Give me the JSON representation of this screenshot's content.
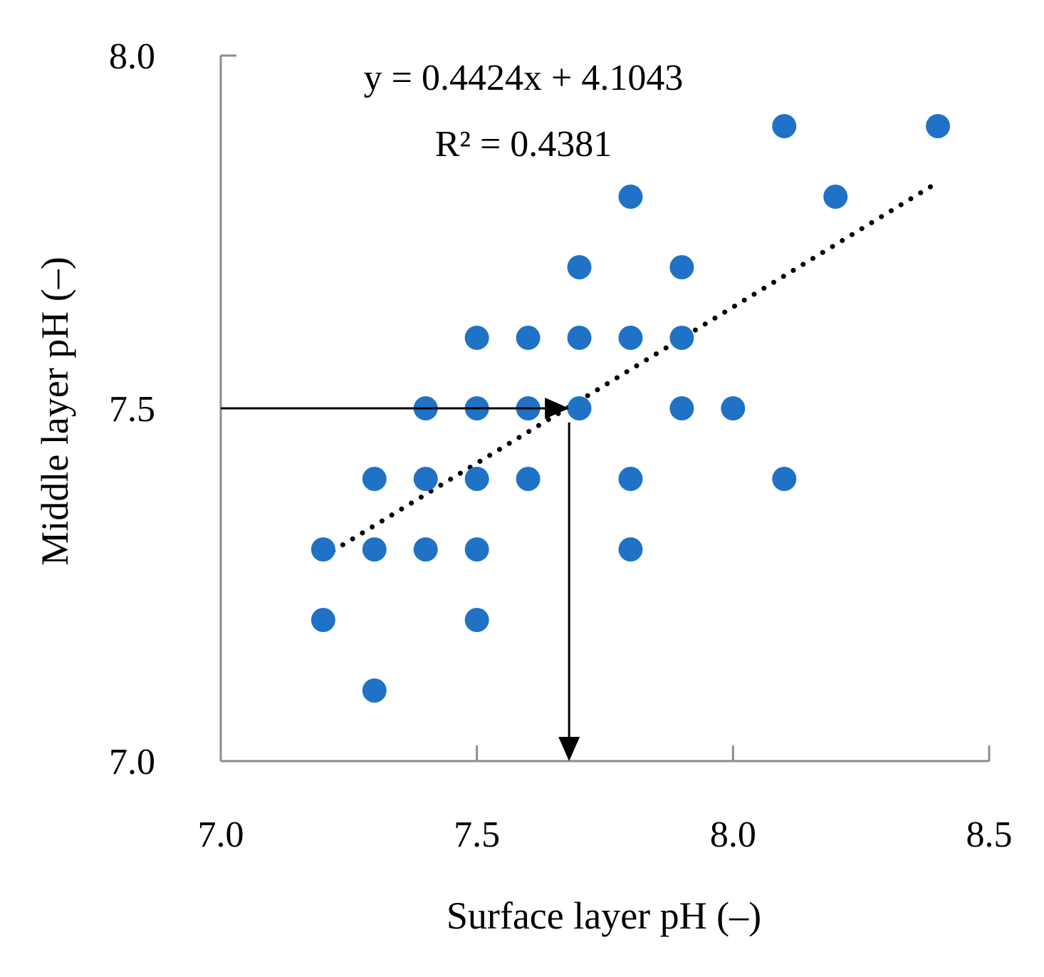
{
  "chart_data": {
    "type": "scatter",
    "title": "",
    "xlabel": "Surface layer pH (–)",
    "ylabel": "Middle layer pH (–)",
    "xlim": [
      7.0,
      8.5
    ],
    "ylim": [
      7.0,
      8.0
    ],
    "xticks": [
      7.0,
      7.5,
      8.0,
      8.5
    ],
    "yticks": [
      7.0,
      7.5,
      8.0
    ],
    "xtick_labels": [
      "7.0",
      "7.5",
      "8.0",
      "8.5"
    ],
    "ytick_labels": [
      "7.0",
      "7.5",
      "8.0"
    ],
    "point_color": "#1f72c6",
    "points": [
      {
        "x": 8.1,
        "y": 7.9
      },
      {
        "x": 8.4,
        "y": 7.9
      },
      {
        "x": 7.8,
        "y": 7.8
      },
      {
        "x": 8.2,
        "y": 7.8
      },
      {
        "x": 7.7,
        "y": 7.7
      },
      {
        "x": 7.9,
        "y": 7.7
      },
      {
        "x": 7.5,
        "y": 7.6
      },
      {
        "x": 7.6,
        "y": 7.6
      },
      {
        "x": 7.7,
        "y": 7.6
      },
      {
        "x": 7.8,
        "y": 7.6
      },
      {
        "x": 7.9,
        "y": 7.6
      },
      {
        "x": 7.4,
        "y": 7.5
      },
      {
        "x": 7.5,
        "y": 7.5
      },
      {
        "x": 7.6,
        "y": 7.5
      },
      {
        "x": 7.7,
        "y": 7.5
      },
      {
        "x": 7.9,
        "y": 7.5
      },
      {
        "x": 8.0,
        "y": 7.5
      },
      {
        "x": 7.3,
        "y": 7.4
      },
      {
        "x": 7.4,
        "y": 7.4
      },
      {
        "x": 7.5,
        "y": 7.4
      },
      {
        "x": 7.6,
        "y": 7.4
      },
      {
        "x": 7.8,
        "y": 7.4
      },
      {
        "x": 8.1,
        "y": 7.4
      },
      {
        "x": 7.2,
        "y": 7.3
      },
      {
        "x": 7.3,
        "y": 7.3
      },
      {
        "x": 7.4,
        "y": 7.3
      },
      {
        "x": 7.5,
        "y": 7.3
      },
      {
        "x": 7.8,
        "y": 7.3
      },
      {
        "x": 7.2,
        "y": 7.2
      },
      {
        "x": 7.5,
        "y": 7.2
      },
      {
        "x": 7.3,
        "y": 7.1
      }
    ],
    "trendline": {
      "slope": 0.4424,
      "intercept": 4.1043,
      "x_range": [
        7.2,
        8.4
      ],
      "style": "dotted",
      "equation_label": "y = 0.4424x + 4.1043",
      "r2_label": "R² = 0.4381"
    },
    "arrows": [
      {
        "from": [
          7.0,
          7.5
        ],
        "to": [
          7.68,
          7.5
        ]
      },
      {
        "from": [
          7.68,
          7.48
        ],
        "to": [
          7.68,
          7.0
        ]
      }
    ]
  }
}
